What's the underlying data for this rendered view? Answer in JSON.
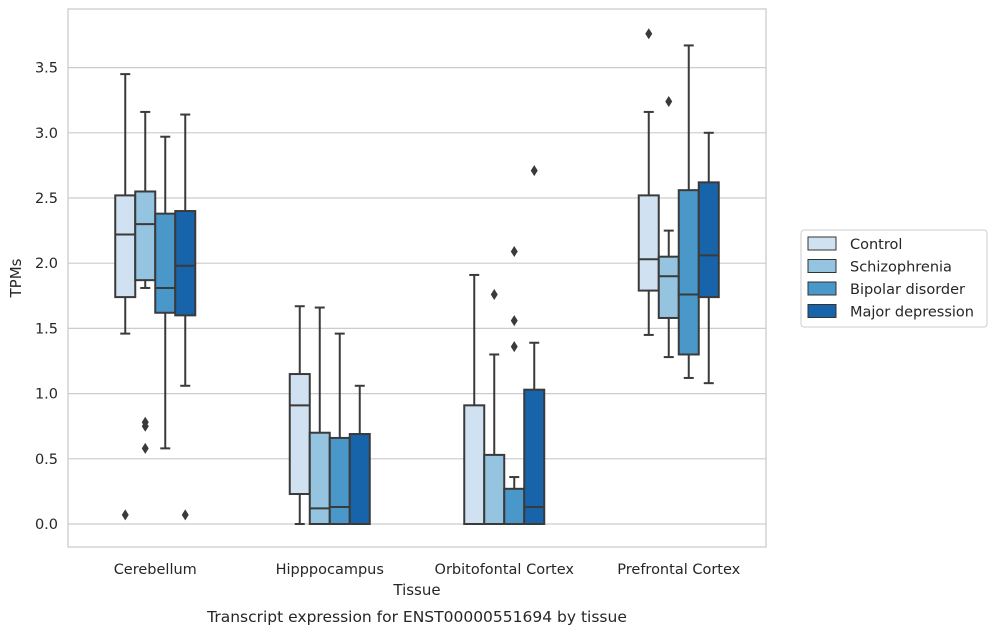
{
  "caption": "Transcript expression for ENST00000551694 by tissue",
  "chart_data": {
    "type": "box",
    "xlabel": "Tissue",
    "ylabel": "TPMs",
    "ylim": [
      -0.18,
      3.9
    ],
    "yticks": [
      "0.0",
      "0.5",
      "1.0",
      "1.5",
      "2.0",
      "2.5",
      "3.0",
      "3.5"
    ],
    "grid": true,
    "legend_position": "right",
    "categories": [
      "Cerebellum",
      "Hipppocampus",
      "Orbitofontal Cortex",
      "Prefrontal Cortex"
    ],
    "series": [
      {
        "name": "Control",
        "color": "#d0e1f2",
        "boxes": [
          {
            "whisker_low": 1.46,
            "q1": 1.74,
            "median": 2.22,
            "q3": 2.52,
            "whisker_high": 3.45,
            "outliers": [
              0.07
            ]
          },
          {
            "whisker_low": 0.0,
            "q1": 0.23,
            "median": 0.91,
            "q3": 1.15,
            "whisker_high": 1.67,
            "outliers": []
          },
          {
            "whisker_low": 0.0,
            "q1": 0.0,
            "median": 0.0,
            "q3": 0.91,
            "whisker_high": 1.91,
            "outliers": []
          },
          {
            "whisker_low": 1.45,
            "q1": 1.79,
            "median": 2.03,
            "q3": 2.52,
            "whisker_high": 3.16,
            "outliers": [
              3.76
            ]
          }
        ]
      },
      {
        "name": "Schizophrenia",
        "color": "#94c4df",
        "boxes": [
          {
            "whisker_low": 1.81,
            "q1": 1.87,
            "median": 2.3,
            "q3": 2.55,
            "whisker_high": 3.16,
            "outliers": [
              0.58,
              0.75,
              0.78
            ]
          },
          {
            "whisker_low": 0.0,
            "q1": 0.0,
            "median": 0.12,
            "q3": 0.7,
            "whisker_high": 1.66,
            "outliers": []
          },
          {
            "whisker_low": 0.0,
            "q1": 0.0,
            "median": 0.0,
            "q3": 0.53,
            "whisker_high": 1.3,
            "outliers": [
              1.76
            ]
          },
          {
            "whisker_low": 1.28,
            "q1": 1.58,
            "median": 1.9,
            "q3": 2.05,
            "whisker_high": 2.25,
            "outliers": [
              3.24
            ]
          }
        ]
      },
      {
        "name": "Bipolar disorder",
        "color": "#4a98c9",
        "boxes": [
          {
            "whisker_low": 0.58,
            "q1": 1.62,
            "median": 1.81,
            "q3": 2.38,
            "whisker_high": 2.97,
            "outliers": []
          },
          {
            "whisker_low": 0.0,
            "q1": 0.0,
            "median": 0.13,
            "q3": 0.66,
            "whisker_high": 1.46,
            "outliers": []
          },
          {
            "whisker_low": 0.0,
            "q1": 0.0,
            "median": 0.0,
            "q3": 0.27,
            "whisker_high": 0.36,
            "outliers": [
              2.09,
              1.56,
              1.36
            ]
          },
          {
            "whisker_low": 1.12,
            "q1": 1.3,
            "median": 1.76,
            "q3": 2.56,
            "whisker_high": 3.67,
            "outliers": []
          }
        ]
      },
      {
        "name": "Major depression",
        "color": "#1764ab",
        "boxes": [
          {
            "whisker_low": 1.06,
            "q1": 1.6,
            "median": 1.98,
            "q3": 2.4,
            "whisker_high": 3.14,
            "outliers": [
              0.07
            ]
          },
          {
            "whisker_low": 0.0,
            "q1": 0.0,
            "median": 0.0,
            "q3": 0.69,
            "whisker_high": 1.06,
            "outliers": []
          },
          {
            "whisker_low": 0.0,
            "q1": 0.0,
            "median": 0.13,
            "q3": 1.03,
            "whisker_high": 1.39,
            "outliers": [
              2.71
            ]
          },
          {
            "whisker_low": 1.08,
            "q1": 1.74,
            "median": 2.06,
            "q3": 2.62,
            "whisker_high": 3.0,
            "outliers": []
          }
        ]
      }
    ]
  }
}
